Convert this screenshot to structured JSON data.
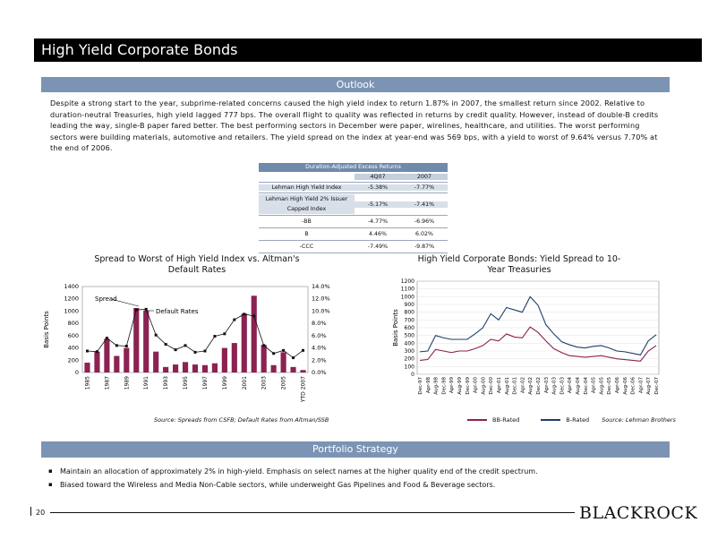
{
  "header": {
    "title": "High Yield Corporate Bonds"
  },
  "outlook": {
    "heading": "Outlook",
    "body": "Despite a strong start to the year, subprime-related concerns caused the high yield index to return 1.87% in 2007, the smallest return since 2002. Relative to duration-neutral Treasuries, high yield lagged 777 bps. The overall flight to quality was reflected in returns by credit quality. However, instead of double-B credits leading the way, single-B paper fared better. The best performing sectors in December were paper, wirelines, healthcare, and utilities. The worst performing sectors were building materials, automotive and retailers. The yield spread on the index at year-end was 569 bps, with a yield to worst of 9.64% versus 7.70% at the end of 2006."
  },
  "returns_table": {
    "title": "Duration-Adjusted Excess Returns",
    "columns": [
      "4Q07",
      "2007"
    ],
    "rows": [
      {
        "label": "Lehman High Yield Index",
        "values": [
          "-5.38%",
          "-7.77%"
        ]
      },
      {
        "label": "Lehman High Yield 2% Issuer Capped Index",
        "values": [
          "-5.17%",
          "-7.41%"
        ]
      },
      {
        "label": "-BB",
        "values": [
          "-4.77%",
          "-6.96%"
        ]
      },
      {
        "label": "B",
        "values": [
          "4.46%",
          "6.02%"
        ]
      },
      {
        "label": "-CCC",
        "values": [
          "-7.49%",
          "-9.87%"
        ]
      }
    ]
  },
  "chart_data": [
    {
      "type": "bar",
      "title": "Spread to Worst of High Yield Index vs. Altman's Default Rates",
      "ylabel": "Basis Points",
      "ylim": [
        0,
        1400
      ],
      "y2lim": [
        0,
        14
      ],
      "yticks": [
        "0",
        "200",
        "400",
        "600",
        "800",
        "1000",
        "1200",
        "1400"
      ],
      "y2ticks": [
        "0.0%",
        "2.0%",
        "4.0%",
        "6.0%",
        "8.0%",
        "10.0%",
        "12.0%",
        "14.0%"
      ],
      "categories": [
        "1985",
        "1986",
        "1987",
        "1988",
        "1989",
        "1990",
        "1991",
        "1992",
        "1993",
        "1994",
        "1995",
        "1996",
        "1997",
        "1998",
        "1999",
        "2000",
        "2001",
        "2002",
        "2003",
        "2004",
        "2005",
        "2006",
        "YTD 2007"
      ],
      "xticklabels": [
        "1985",
        "1987",
        "1989",
        "1991",
        "1993",
        "1995",
        "1997",
        "1999",
        "2001",
        "2003",
        "2005",
        "YTD 2007"
      ],
      "series": [
        {
          "name": "Spread",
          "kind": "bar",
          "color": "#8b2252",
          "values": [
            160,
            340,
            550,
            270,
            400,
            1050,
            1010,
            340,
            90,
            130,
            170,
            130,
            120,
            150,
            400,
            480,
            960,
            1250,
            450,
            120,
            330,
            90,
            40
          ]
        },
        {
          "name": "Default Rates",
          "kind": "line",
          "axis": "right",
          "values": [
            3.5,
            3.4,
            5.6,
            4.4,
            4.3,
            10.2,
            10.3,
            6.1,
            4.6,
            3.7,
            4.4,
            3.3,
            3.5,
            5.9,
            6.3,
            8.6,
            9.5,
            9.2,
            4.4,
            3.1,
            3.6,
            2.4,
            3.6
          ]
        }
      ],
      "source": "Source: Spreads from CSFB; Default Rates from Altman/SSB"
    },
    {
      "type": "line",
      "title": "High Yield Corporate Bonds: Yield Spread to 10-Year Treasuries",
      "ylabel": "Basis Points",
      "ylim": [
        0,
        1200
      ],
      "yticks": [
        "0",
        "100",
        "200",
        "300",
        "400",
        "500",
        "600",
        "700",
        "800",
        "900",
        "1000",
        "1100",
        "1200"
      ],
      "xticklabels": [
        "Dec-97",
        "Apr-98",
        "Aug-98",
        "Dec-98",
        "Apr-99",
        "Aug-99",
        "Dec-99",
        "Apr-00",
        "Aug-00",
        "Dec-00",
        "Apr-01",
        "Aug-01",
        "Dec-01",
        "Apr-02",
        "Aug-02",
        "Dec-02",
        "Apr-03",
        "Aug-03",
        "Dec-03",
        "Apr-04",
        "Aug-04",
        "Dec-04",
        "Apr-05",
        "Aug-05",
        "Dec-05",
        "Apr-06",
        "Aug-06",
        "Dec-06",
        "Apr-07",
        "Aug-07",
        "Dec-07"
      ],
      "series": [
        {
          "name": "BB-Rated",
          "color": "#8b2252",
          "values": [
            180,
            190,
            320,
            300,
            280,
            300,
            300,
            330,
            370,
            450,
            430,
            520,
            480,
            470,
            610,
            540,
            430,
            330,
            280,
            240,
            230,
            220,
            230,
            240,
            220,
            200,
            190,
            180,
            170,
            300,
            370
          ]
        },
        {
          "name": "B-Rated",
          "color": "#1f3d6b",
          "values": [
            290,
            300,
            500,
            470,
            450,
            450,
            450,
            520,
            600,
            780,
            700,
            860,
            830,
            800,
            1000,
            890,
            640,
            520,
            420,
            380,
            350,
            340,
            360,
            370,
            340,
            300,
            290,
            270,
            250,
            430,
            510
          ]
        }
      ],
      "source": "Source: Lehman Brothers"
    }
  ],
  "strategy": {
    "heading": "Portfolio Strategy",
    "bullets": [
      "Maintain an allocation of approximately 2% in high-yield. Emphasis on select names at the higher quality end of the credit spectrum.",
      "Biased toward the Wireless and Media Non-Cable sectors, while underweight Gas Pipelines and Food & Beverage sectors."
    ]
  },
  "footer": {
    "page_number": "20",
    "logo": "BLACKROCK"
  }
}
